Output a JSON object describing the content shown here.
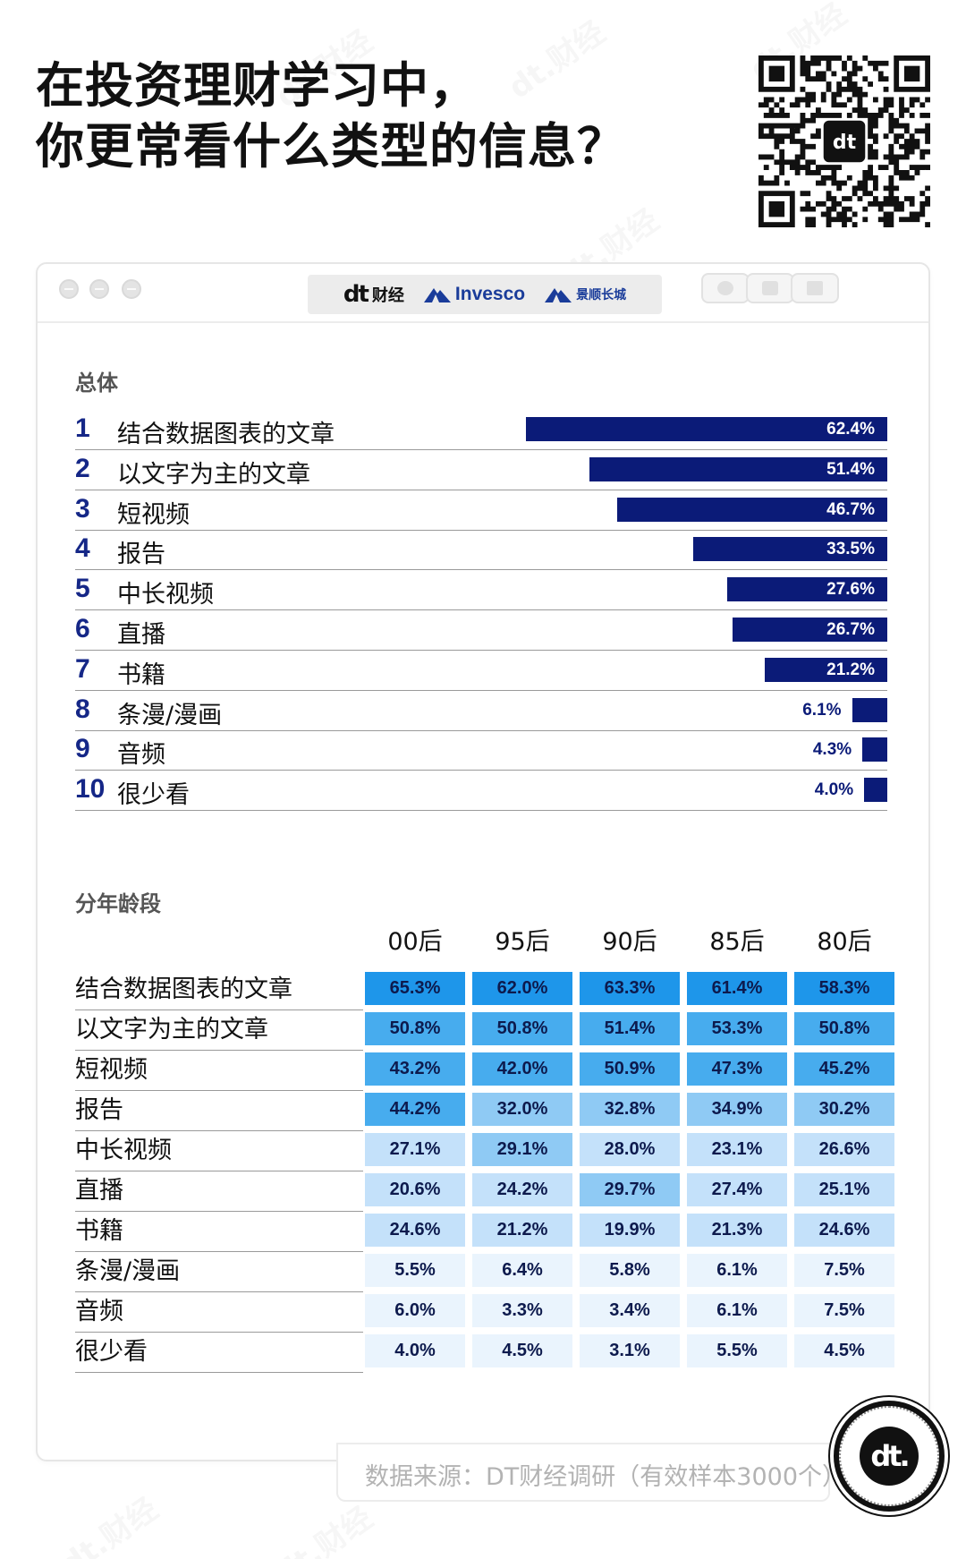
{
  "title": {
    "line1": "在投资理财学习中，",
    "line2": "你更常看什么类型的信息？"
  },
  "watermark": "dt.财经",
  "logos": {
    "dt": "dt",
    "dt_sub": "财经",
    "invesco": "Invesco",
    "jingshun": "景顺长城"
  },
  "section_overall": "总体",
  "section_age": "分年龄段",
  "chart_data": [
    {
      "type": "bar",
      "title": "总体",
      "categories": [
        "结合数据图表的文章",
        "以文字为主的文章",
        "短视频",
        "报告",
        "中长视频",
        "直播",
        "书籍",
        "条漫/漫画",
        "音频",
        "很少看"
      ],
      "ranks": [
        "1",
        "2",
        "3",
        "4",
        "5",
        "6",
        "7",
        "8",
        "9",
        "10"
      ],
      "values": [
        62.4,
        51.4,
        46.7,
        33.5,
        27.6,
        26.7,
        21.2,
        6.1,
        4.3,
        4.0
      ],
      "labels": [
        "62.4%",
        "51.4%",
        "46.7%",
        "33.5%",
        "27.6%",
        "26.7%",
        "21.2%",
        "6.1%",
        "4.3%",
        "4.0%"
      ],
      "ylim": [
        0,
        65
      ],
      "color": "#0b1b78"
    },
    {
      "type": "heatmap",
      "title": "分年龄段",
      "columns": [
        "00后",
        "95后",
        "90后",
        "85后",
        "80后"
      ],
      "rows": [
        "结合数据图表的文章",
        "以文字为主的文章",
        "短视频",
        "报告",
        "中长视频",
        "直播",
        "书籍",
        "条漫/漫画",
        "音频",
        "很少看"
      ],
      "values": [
        [
          65.3,
          62.0,
          63.3,
          61.4,
          58.3
        ],
        [
          50.8,
          50.8,
          51.4,
          53.3,
          50.8
        ],
        [
          43.2,
          42.0,
          50.9,
          47.3,
          45.2
        ],
        [
          44.2,
          32.0,
          32.8,
          34.9,
          30.2
        ],
        [
          27.1,
          29.1,
          28.0,
          23.1,
          26.6
        ],
        [
          20.6,
          24.2,
          29.7,
          27.4,
          25.1
        ],
        [
          24.6,
          21.2,
          19.9,
          21.3,
          24.6
        ],
        [
          5.5,
          6.4,
          5.8,
          6.1,
          7.5
        ],
        [
          6.0,
          3.3,
          3.4,
          6.1,
          7.5
        ],
        [
          4.0,
          4.5,
          3.1,
          5.5,
          4.5
        ]
      ],
      "labels": [
        [
          "65.3%",
          "62.0%",
          "63.3%",
          "61.4%",
          "58.3%"
        ],
        [
          "50.8%",
          "50.8%",
          "51.4%",
          "53.3%",
          "50.8%"
        ],
        [
          "43.2%",
          "42.0%",
          "50.9%",
          "47.3%",
          "45.2%"
        ],
        [
          "44.2%",
          "32.0%",
          "32.8%",
          "34.9%",
          "30.2%"
        ],
        [
          "27.1%",
          "29.1%",
          "28.0%",
          "23.1%",
          "26.6%"
        ],
        [
          "20.6%",
          "24.2%",
          "29.7%",
          "27.4%",
          "25.1%"
        ],
        [
          "24.6%",
          "21.2%",
          "19.9%",
          "21.3%",
          "24.6%"
        ],
        [
          "5.5%",
          "6.4%",
          "5.8%",
          "6.1%",
          "7.5%"
        ],
        [
          "6.0%",
          "3.3%",
          "3.4%",
          "6.1%",
          "7.5%"
        ],
        [
          "4.0%",
          "4.5%",
          "3.1%",
          "5.5%",
          "4.5%"
        ]
      ],
      "color_scale": [
        "#eaf4fd",
        "#c4e1fa",
        "#8fcaf4",
        "#47acee",
        "#1e96ea"
      ]
    }
  ],
  "source": "数据来源：DT财经调研（有效样本3000个）",
  "badge": "dt."
}
